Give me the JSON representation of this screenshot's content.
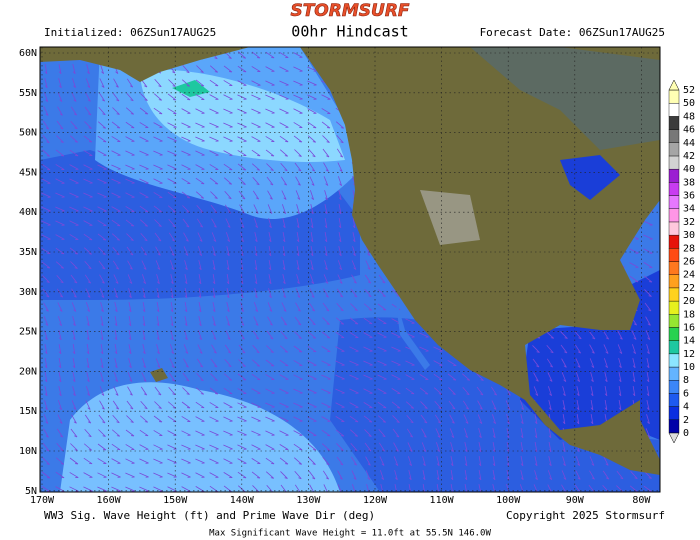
{
  "header": {
    "logo": "STORMSURF",
    "initialized": "Initialized: 06ZSun17AUG25",
    "title": "00hr Hindcast",
    "forecast_date": "Forecast Date: 06ZSun17AUG25"
  },
  "map": {
    "lat_labels": [
      "60N",
      "55N",
      "50N",
      "45N",
      "40N",
      "35N",
      "30N",
      "25N",
      "20N",
      "15N",
      "10N",
      "5N"
    ],
    "lon_labels": [
      "170W",
      "160W",
      "150W",
      "140W",
      "130W",
      "120W",
      "110W",
      "100W",
      "90W",
      "80W"
    ]
  },
  "colorbar": {
    "labels": [
      0,
      2,
      4,
      6,
      8,
      10,
      12,
      14,
      16,
      18,
      20,
      22,
      24,
      26,
      28,
      30,
      32,
      34,
      36,
      38,
      40,
      42,
      44,
      46,
      48,
      50,
      52
    ],
    "colors": [
      "#0000a8",
      "#0a2ee0",
      "#1e5af0",
      "#3c86f8",
      "#64b4ff",
      "#8ce6ff",
      "#1ec8a0",
      "#28d250",
      "#96e632",
      "#e6f01e",
      "#ffd21e",
      "#ffa01e",
      "#ff781e",
      "#ff4b14",
      "#e6140a",
      "#ffc8dc",
      "#ff96e6",
      "#e678ff",
      "#c83cf0",
      "#9b1ed2",
      "#d2d2d2",
      "#a5a5a5",
      "#787878",
      "#3c3c3c",
      "#ffffff",
      "#ffffb4"
    ]
  },
  "footer": {
    "caption": "WW3 Sig. Wave Height (ft) and Prime Wave Dir (deg)",
    "copyright": "Copyright 2025 Stormsurf",
    "max_note": "Max Significant Wave Height = 11.0ft at 55.5N 146.0W"
  }
}
